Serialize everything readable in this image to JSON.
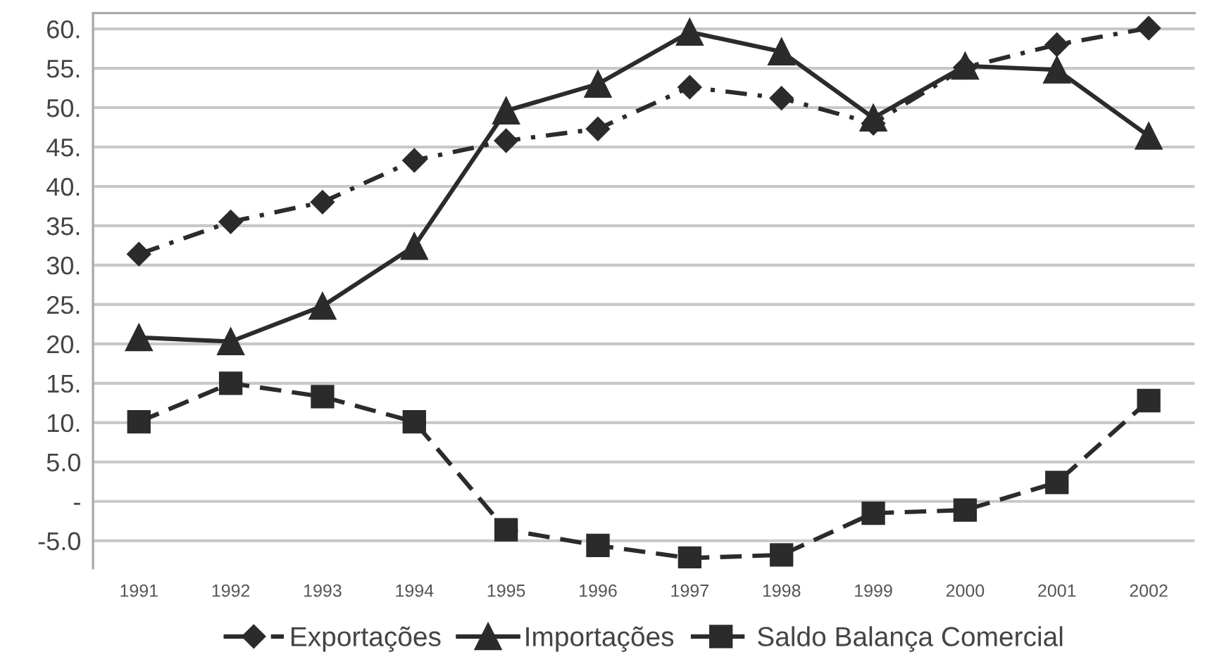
{
  "chart_data": {
    "type": "line",
    "categories": [
      "1991",
      "1992",
      "1993",
      "1994",
      "1995",
      "1996",
      "1997",
      "1998",
      "1999",
      "2000",
      "2001",
      "2002"
    ],
    "series": [
      {
        "name": "Exportações",
        "color": "#2b2b2b",
        "marker": "diamond",
        "line_style": "dashdot",
        "values": [
          31.4,
          35.5,
          38.0,
          43.3,
          45.8,
          47.3,
          52.6,
          51.2,
          48.0,
          55.1,
          58.0,
          60.1
        ]
      },
      {
        "name": "Importações",
        "color": "#2b2b2b",
        "marker": "triangle",
        "line_style": "solid",
        "values": [
          20.8,
          20.3,
          24.8,
          32.4,
          49.6,
          53.0,
          59.6,
          57.1,
          48.7,
          55.3,
          54.8,
          46.4
        ]
      },
      {
        "name": "Saldo Balança Comercial",
        "color": "#2b2b2b",
        "marker": "square",
        "line_style": "dashed",
        "values": [
          10.1,
          15.0,
          13.3,
          10.1,
          -3.6,
          -5.6,
          -7.2,
          -6.8,
          -1.5,
          -1.1,
          2.4,
          12.8
        ]
      }
    ],
    "ylim": [
      -8.5,
      62
    ],
    "yticks": [
      {
        "value": -5,
        "label": "-5.0"
      },
      {
        "value": 0,
        "label": "-"
      },
      {
        "value": 5,
        "label": "5.0"
      },
      {
        "value": 10,
        "label": "10."
      },
      {
        "value": 15,
        "label": "15."
      },
      {
        "value": 20,
        "label": "20."
      },
      {
        "value": 25,
        "label": "25."
      },
      {
        "value": 30,
        "label": "30."
      },
      {
        "value": 35,
        "label": "35."
      },
      {
        "value": 40,
        "label": "40."
      },
      {
        "value": 45,
        "label": "45."
      },
      {
        "value": 50,
        "label": "50."
      },
      {
        "value": 55,
        "label": "55."
      },
      {
        "value": 60,
        "label": "60."
      }
    ],
    "grid": "y",
    "legend": "bottom"
  }
}
